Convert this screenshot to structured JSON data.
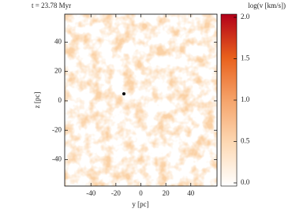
{
  "chart_data": {
    "type": "field-map",
    "title": "t = 23.78 Myr",
    "colorbar_label": "log(v [km/s])",
    "xlabel": "y [pc]",
    "ylabel": "z [pc]",
    "xlim": [
      -61,
      61
    ],
    "xticks": [
      -40,
      -20,
      0,
      20,
      40
    ],
    "ylim": [
      -58,
      59
    ],
    "yticks": [
      -40,
      -20,
      0,
      20,
      40
    ],
    "clim": [
      0,
      2
    ],
    "cticks": [
      {
        "value": 0,
        "label": "0.0"
      },
      {
        "value": 0.5,
        "label": "0.5"
      },
      {
        "value": 1,
        "label": "1.0"
      },
      {
        "value": 1.5,
        "label": "1.5"
      },
      {
        "value": 2,
        "label": "2.0"
      }
    ],
    "colors": [
      "#ffffff",
      "#fdd9b4",
      "#f5a36a",
      "#e8601c",
      "#b2001a"
    ]
  }
}
